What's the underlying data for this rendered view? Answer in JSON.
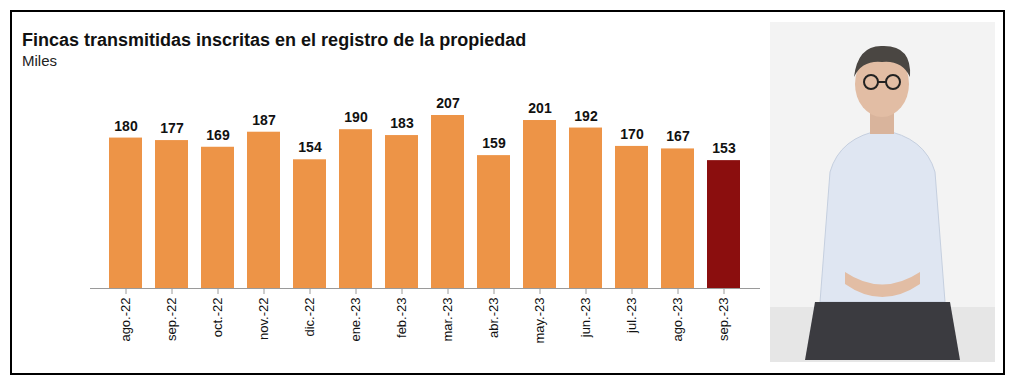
{
  "chart_data": {
    "type": "bar",
    "title": "Fincas transmitidas inscritas en el registro de la propiedad",
    "subtitle": "Miles",
    "categories": [
      "ago.-22",
      "sep.-22",
      "oct.-22",
      "nov.-22",
      "dic.-22",
      "ene.-23",
      "feb.-23",
      "mar.-23",
      "abr.-23",
      "may.-23",
      "jun.-23",
      "jul.-23",
      "ago.-23",
      "sep.-23"
    ],
    "values": [
      180,
      177,
      169,
      187,
      154,
      190,
      183,
      207,
      159,
      201,
      192,
      170,
      167,
      153
    ],
    "colors": [
      "#ED9447",
      "#ED9447",
      "#ED9447",
      "#ED9447",
      "#ED9447",
      "#ED9447",
      "#ED9447",
      "#ED9447",
      "#ED9447",
      "#ED9447",
      "#ED9447",
      "#ED9447",
      "#ED9447",
      "#8B0E0E"
    ],
    "data_labels": true,
    "tick_labels": "x",
    "grid": false
  }
}
